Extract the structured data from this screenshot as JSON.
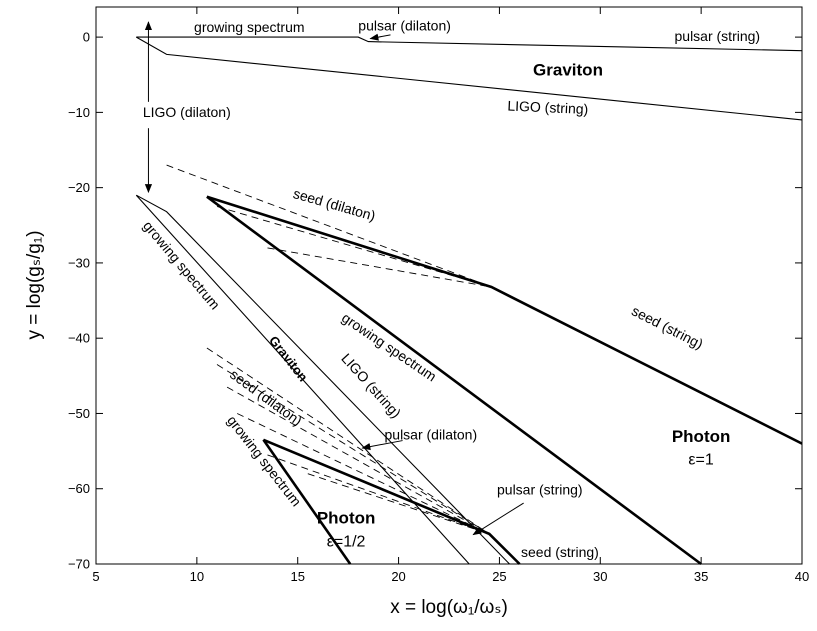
{
  "chart_data": {
    "type": "line",
    "title": "",
    "xlabel": "x = log(ω₁/ωₛ)",
    "ylabel": "y = log(gₛ/g₁)",
    "xlim": [
      5,
      40
    ],
    "ylim": [
      -70,
      5
    ],
    "xticks": [
      5,
      10,
      15,
      20,
      25,
      30,
      35,
      40
    ],
    "yticks": [
      0,
      -10,
      -20,
      -30,
      -40,
      -50,
      -60,
      -70
    ],
    "xtick_labels": [
      "5",
      "10",
      "15",
      "20",
      "25",
      "30",
      "35",
      "40"
    ],
    "ytick_labels": [
      "0",
      "−10",
      "−20",
      "−30",
      "−40",
      "−50",
      "−60",
      "−70"
    ],
    "grid": false,
    "series": [
      {
        "name": "graviton-growing-pulsar",
        "style": "thin",
        "points": [
          [
            7,
            0
          ],
          [
            18,
            0
          ],
          [
            18.5,
            -0.6
          ],
          [
            40,
            -1.8
          ]
        ]
      },
      {
        "name": "graviton-ligo",
        "style": "thin",
        "points": [
          [
            7,
            0
          ],
          [
            8.5,
            -2.3
          ],
          [
            40,
            -11
          ]
        ]
      },
      {
        "name": "photon-eps1-growing",
        "style": "thick",
        "points": [
          [
            10.5,
            -21.2
          ],
          [
            35,
            -70
          ]
        ]
      },
      {
        "name": "photon-eps1-seed",
        "style": "thick",
        "points": [
          [
            10.5,
            -21.2
          ],
          [
            24.6,
            -33.2
          ],
          [
            40,
            -54
          ]
        ]
      },
      {
        "name": "photon-eps1-seed-dilaton-1",
        "style": "dashed",
        "points": [
          [
            8.5,
            -17
          ],
          [
            24.6,
            -33.2
          ]
        ]
      },
      {
        "name": "photon-eps1-seed-dilaton-2",
        "style": "dashed",
        "points": [
          [
            11,
            -22.5
          ],
          [
            24.6,
            -33.2
          ]
        ]
      },
      {
        "name": "photon-eps1-seed-dilaton-3",
        "style": "dashed",
        "points": [
          [
            13.5,
            -28
          ],
          [
            24.6,
            -33.2
          ]
        ]
      },
      {
        "name": "graviton-eps-half-growing",
        "style": "thin",
        "points": [
          [
            7,
            -21
          ],
          [
            23.5,
            -70
          ]
        ]
      },
      {
        "name": "graviton-eps-half-ligo",
        "style": "thin",
        "points": [
          [
            7,
            -21
          ],
          [
            8.5,
            -23.2
          ],
          [
            25.5,
            -70
          ]
        ]
      },
      {
        "name": "photon-half-growing",
        "style": "thick",
        "points": [
          [
            13.3,
            -53.5
          ],
          [
            17.6,
            -70
          ]
        ]
      },
      {
        "name": "photon-half-seed",
        "style": "thick",
        "points": [
          [
            13.3,
            -53.5
          ],
          [
            24.5,
            -66
          ],
          [
            26,
            -70
          ]
        ]
      },
      {
        "name": "photon-half-dashed-1",
        "style": "dashed",
        "points": [
          [
            10.5,
            -41.3
          ],
          [
            24.5,
            -66
          ]
        ]
      },
      {
        "name": "photon-half-dashed-2",
        "style": "dashed",
        "points": [
          [
            11,
            -43.5
          ],
          [
            24.5,
            -66
          ]
        ]
      },
      {
        "name": "photon-half-dashed-3",
        "style": "dashed",
        "points": [
          [
            11.5,
            -46.5
          ],
          [
            24.5,
            -66
          ]
        ]
      },
      {
        "name": "photon-half-dashed-4",
        "style": "dashed",
        "points": [
          [
            12,
            -50
          ],
          [
            24.5,
            -66
          ]
        ]
      },
      {
        "name": "photon-half-dashed-5",
        "style": "dashed",
        "points": [
          [
            13.5,
            -55.5
          ],
          [
            24.5,
            -66
          ]
        ]
      },
      {
        "name": "photon-half-dashed-6",
        "style": "dashed",
        "points": [
          [
            15.5,
            -58
          ],
          [
            24.5,
            -66
          ]
        ]
      }
    ],
    "annotations": [
      {
        "text": "growing spectrum",
        "x": 12.6,
        "y": 1.2,
        "angle": 0
      },
      {
        "text": "pulsar (dilaton)",
        "x": 20.3,
        "y": 1.4,
        "angle": 0
      },
      {
        "text": "pulsar (string)",
        "x": 35.8,
        "y": 0.0,
        "angle": 0
      },
      {
        "text": "Graviton",
        "x": 28.4,
        "y": -4.5,
        "angle": 0,
        "bold": true,
        "size": 17
      },
      {
        "text": "LIGO (string)",
        "x": 27.4,
        "y": -9.5,
        "angle": 2.5
      },
      {
        "text": "LIGO (dilaton)",
        "x": 9.5,
        "y": -10.1,
        "angle": 0
      },
      {
        "text": "seed (dilaton)",
        "x": 16.8,
        "y": -22.4,
        "angle": 16
      },
      {
        "text": "seed (string)",
        "x": 33.3,
        "y": -38.7,
        "angle": 27
      },
      {
        "text": "growing spectrum",
        "x": 19.5,
        "y": -41.3,
        "angle": 34
      },
      {
        "text": "growing spectrum",
        "x": 9.2,
        "y": -30.4,
        "angle": 50
      },
      {
        "text": "Graviton",
        "x": 14.5,
        "y": -42.8,
        "angle": 52,
        "bold": true,
        "size": 13
      },
      {
        "text": "LIGO (string)",
        "x": 18.6,
        "y": -46.4,
        "angle": 48
      },
      {
        "text": "seed (dilaton)",
        "x": 13.4,
        "y": -48.0,
        "angle": 36
      },
      {
        "text": "growing spectrum",
        "x": 13.3,
        "y": -56.4,
        "angle": 52
      },
      {
        "text": "pulsar (dilaton)",
        "x": 21.6,
        "y": -53.0,
        "angle": 0
      },
      {
        "text": "pulsar (string)",
        "x": 27.0,
        "y": -60.3,
        "angle": 0
      },
      {
        "text": "seed (string)",
        "x": 28.0,
        "y": -68.6,
        "angle": 0
      },
      {
        "text": "Photon",
        "x": 35.0,
        "y": -53.2,
        "angle": 0,
        "bold": true,
        "size": 17
      },
      {
        "text": "ε=1",
        "x": 35.0,
        "y": -56.2,
        "angle": 0,
        "bold": false,
        "size": 16
      },
      {
        "text": "Photon",
        "x": 17.4,
        "y": -64.0,
        "angle": 0,
        "bold": true,
        "size": 17
      },
      {
        "text": "ε=1/2",
        "x": 17.4,
        "y": -67.1,
        "angle": 0,
        "bold": false,
        "size": 16
      }
    ],
    "arrows": [
      {
        "name": "ligo-dilaton-arrow-up",
        "from": [
          7.6,
          -8.6
        ],
        "to": [
          7.6,
          2.0
        ]
      },
      {
        "name": "ligo-dilaton-arrow-down",
        "from": [
          7.6,
          -12.1
        ],
        "to": [
          7.6,
          -20.6
        ]
      },
      {
        "name": "pulsar-dilaton-arrow-top",
        "from": [
          19.6,
          0.3
        ],
        "to": [
          18.6,
          -0.2
        ]
      },
      {
        "name": "pulsar-dilaton-arrow-mid",
        "from": [
          20.2,
          -53.6
        ],
        "to": [
          18.2,
          -54.6
        ]
      },
      {
        "name": "pulsar-string-arrow",
        "from": [
          26.2,
          -61.9
        ],
        "to": [
          23.7,
          -66.1
        ]
      }
    ]
  }
}
